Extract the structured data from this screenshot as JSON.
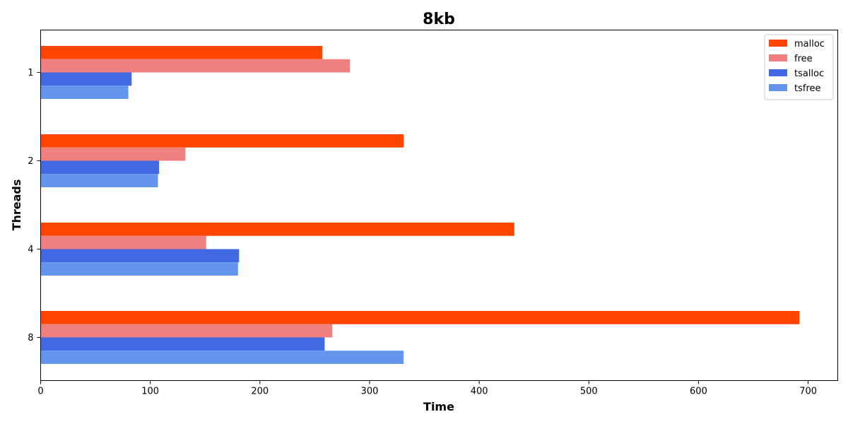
{
  "chart_data": {
    "type": "bar",
    "orientation": "horizontal",
    "title": "8kb",
    "xlabel": "Time",
    "ylabel": "Threads",
    "categories": [
      "1",
      "2",
      "4",
      "8"
    ],
    "series": [
      {
        "name": "malloc",
        "color": "#ff4500",
        "values": [
          257,
          331,
          432,
          692
        ]
      },
      {
        "name": "free",
        "color": "#f08080",
        "values": [
          282,
          132,
          151,
          266
        ]
      },
      {
        "name": "tsalloc",
        "color": "#4169e1",
        "values": [
          83,
          108,
          181,
          259
        ]
      },
      {
        "name": "tsfree",
        "color": "#6495ed",
        "values": [
          80,
          107,
          180,
          331
        ]
      }
    ],
    "xlim": [
      0,
      727
    ],
    "xticks": [
      0,
      100,
      200,
      300,
      400,
      500,
      600,
      700
    ],
    "grid": false,
    "legend": "top-right"
  }
}
